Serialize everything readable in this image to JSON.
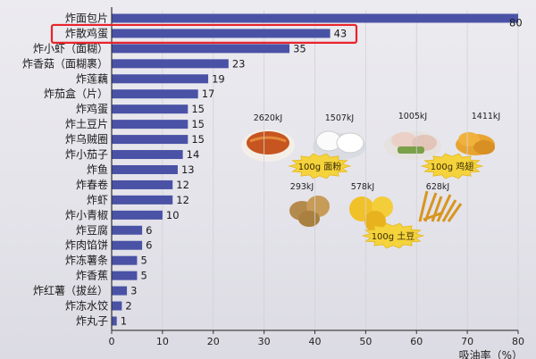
{
  "chart_data": {
    "type": "bar",
    "orientation": "horizontal",
    "categories": [
      "炸面包片",
      "炸散鸡蛋",
      "炸小虾（面糊）",
      "炸香菇（面糊裹）",
      "炸莲藕",
      "炸茄盒（片）",
      "炸鸡蛋",
      "炸土豆片",
      "炸乌贼圈",
      "炸小茄子",
      "炸鱼",
      "炸春卷",
      "炸虾",
      "炸小青椒",
      "炸豆腐",
      "炸肉馅饼",
      "炸冻薯条",
      "炸香蕉",
      "炸红薯（拔丝）",
      "炸冻水饺",
      "炸丸子"
    ],
    "values": [
      80,
      43,
      35,
      23,
      19,
      17,
      15,
      15,
      15,
      14,
      13,
      12,
      12,
      10,
      6,
      6,
      5,
      5,
      3,
      2,
      1
    ],
    "xlim": [
      0,
      80
    ],
    "xticks": [
      0,
      10,
      20,
      30,
      40,
      50,
      60,
      70,
      80
    ],
    "xlabel": "吸油率（%）",
    "highlight_index": 1,
    "bar_color": "#4a52a6",
    "highlight_color": "#e8242b",
    "annotations": [
      {
        "text": "2620kJ"
      },
      {
        "text": "1507kJ"
      },
      {
        "text": "1005kJ"
      },
      {
        "text": "1411kJ"
      },
      {
        "text": "100g 面粉"
      },
      {
        "text": "100g 鸡翅"
      },
      {
        "text": "293kJ"
      },
      {
        "text": "578kJ"
      },
      {
        "text": "628kJ"
      },
      {
        "text": "100g 土豆"
      }
    ]
  }
}
